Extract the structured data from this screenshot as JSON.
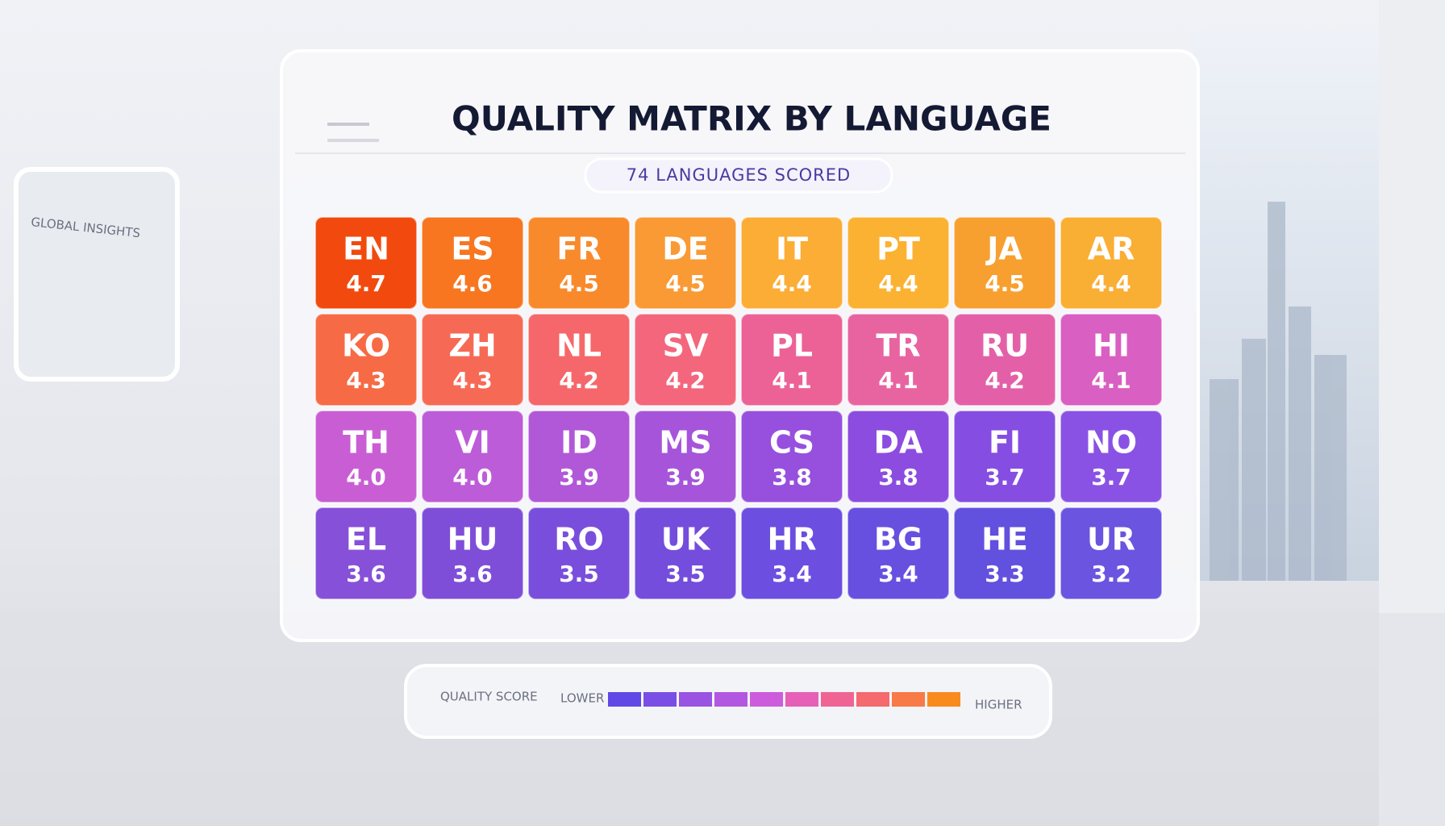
{
  "chart_data": {
    "type": "heatmap",
    "title": "QUALITY MATRIX BY LANGUAGE",
    "subtitle": "74 LANGUAGES SCORED",
    "categories": [
      "EN",
      "ES",
      "FR",
      "DE",
      "IT",
      "PT",
      "JA",
      "AR",
      "KO",
      "ZH",
      "NL",
      "SV",
      "PL",
      "TR",
      "RU",
      "HI",
      "TH",
      "VI",
      "ID",
      "MS",
      "CS",
      "DA",
      "FI",
      "NO",
      "EL",
      "HU",
      "RO",
      "UK",
      "HR",
      "BG",
      "HE",
      "UR"
    ],
    "values": [
      4.7,
      4.6,
      4.5,
      4.5,
      4.4,
      4.4,
      4.5,
      4.4,
      4.3,
      4.3,
      4.2,
      4.2,
      4.1,
      4.1,
      4.2,
      4.1,
      4.0,
      4.0,
      3.9,
      3.9,
      3.8,
      3.8,
      3.7,
      3.7,
      3.6,
      3.6,
      3.5,
      3.5,
      3.4,
      3.4,
      3.3,
      3.2
    ],
    "value_labels": [
      "4.7",
      "4.6",
      "4.5",
      "4.5",
      "4.4",
      "4.4",
      "4.5",
      "4.4",
      "4.3",
      "4.3",
      "4.2",
      "4.2",
      "4.1",
      "4.1",
      "4.2",
      "4.1",
      "4.0",
      "4.0",
      "3.9",
      "3.9",
      "3.8",
      "3.8",
      "3.7",
      "3.7",
      "3.6",
      "3.6",
      "3.5",
      "3.5",
      "3.4",
      "3.4",
      "3.3",
      "3.2"
    ],
    "colors": [
      "#f24a0e",
      "#f7761f",
      "#f88a2c",
      "#f99a34",
      "#fbad35",
      "#fbb232",
      "#f7a030",
      "#f9ae34",
      "#f66b45",
      "#f66a55",
      "#f5676a",
      "#f3667c",
      "#ec6297",
      "#e864a0",
      "#e360a8",
      "#d95fc2",
      "#c95ed4",
      "#bd5cd8",
      "#b158d8",
      "#a655da",
      "#9650dd",
      "#8c4ce0",
      "#864de2",
      "#8a52e4",
      "#8750d8",
      "#7f4ed8",
      "#7a4edc",
      "#744ddd",
      "#6c4ee0",
      "#6750e0",
      "#6250de",
      "#6a54e0"
    ],
    "legend": {
      "title": "QUALITY SCORE",
      "low_label": "LOWER",
      "high_label": "HIGHER",
      "colors": [
        "#6048e6",
        "#7a4ee4",
        "#9a52e2",
        "#b258e0",
        "#cd5cdc",
        "#e660b8",
        "#f06494",
        "#f46a6e",
        "#f77a48",
        "#f98a1e"
      ]
    }
  },
  "scene": {
    "wall_panel_label": "GLOBAL INSIGHTS"
  }
}
